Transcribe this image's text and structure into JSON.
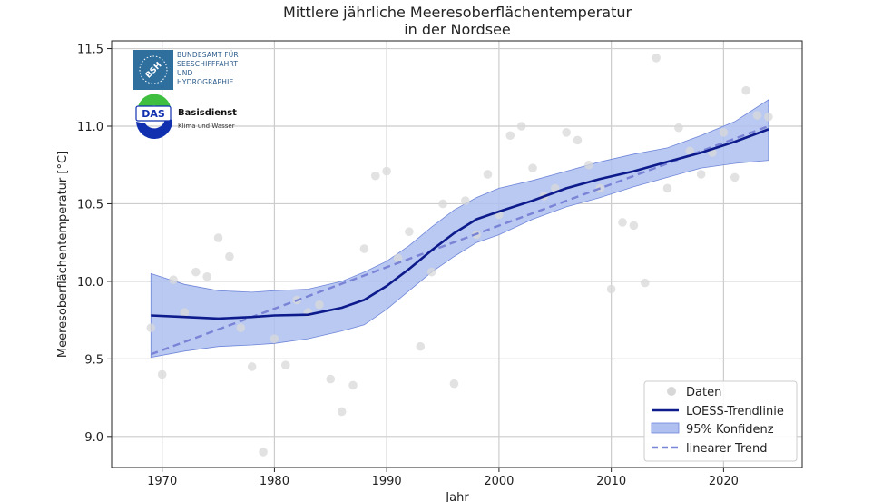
{
  "chart_data": {
    "type": "line",
    "title": [
      "Mittlere jährliche Meeresoberflächentemperatur",
      "in der Nordsee"
    ],
    "xlabel": "Jahr",
    "ylabel": "Meeresoberflächentemperatur [°C]",
    "xlim": [
      1965.5,
      2027
    ],
    "ylim": [
      8.8,
      11.55
    ],
    "xticks": [
      1970,
      1980,
      1990,
      2000,
      2010,
      2020
    ],
    "yticks": [
      9.0,
      9.5,
      10.0,
      10.5,
      11.0,
      11.5
    ],
    "ytick_labels": [
      "9.0",
      "9.5",
      "10.0",
      "10.5",
      "11.0",
      "11.5"
    ],
    "grid": true,
    "legend_position": "bottom-right",
    "legend": [
      "Daten",
      "LOESS-Trendlinie",
      "95% Konfidenz",
      "linearer Trend"
    ],
    "colors": {
      "data": "#d8d8d8",
      "loess": "#0d1b8c",
      "band_fill": "#aebff0",
      "band_edge": "#6f86d9",
      "linear": "#7a84d6"
    },
    "points": {
      "x": [
        1969,
        1970,
        1971,
        1972,
        1973,
        1974,
        1975,
        1976,
        1977,
        1978,
        1979,
        1980,
        1981,
        1982,
        1983,
        1984,
        1985,
        1986,
        1987,
        1988,
        1989,
        1990,
        1991,
        1992,
        1993,
        1994,
        1995,
        1996,
        1997,
        1998,
        1999,
        2000,
        2001,
        2002,
        2003,
        2004,
        2005,
        2006,
        2007,
        2008,
        2009,
        2010,
        2011,
        2012,
        2013,
        2014,
        2015,
        2016,
        2017,
        2018,
        2019,
        2020,
        2021,
        2022,
        2023,
        2024
      ],
      "y": [
        9.7,
        9.4,
        10.01,
        9.8,
        10.06,
        10.03,
        10.28,
        10.16,
        9.7,
        9.45,
        8.9,
        9.63,
        9.46,
        9.88,
        9.8,
        9.85,
        9.37,
        9.16,
        9.33,
        10.21,
        10.68,
        10.71,
        10.15,
        10.32,
        9.58,
        10.06,
        10.5,
        9.34,
        10.52,
        10.3,
        10.69,
        10.43,
        10.94,
        11.0,
        10.73,
        10.55,
        10.6,
        10.96,
        10.91,
        10.75,
        10.6,
        9.95,
        10.38,
        10.36,
        9.99,
        11.44,
        10.6,
        10.99,
        10.84,
        10.69,
        10.83,
        10.96,
        10.67,
        11.23,
        11.07,
        11.06
      ]
    },
    "loess": {
      "x": [
        1969,
        1972,
        1975,
        1978,
        1980,
        1983,
        1986,
        1988,
        1990,
        1992,
        1994,
        1996,
        1998,
        2000,
        2003,
        2006,
        2009,
        2012,
        2015,
        2018,
        2021,
        2024
      ],
      "y": [
        9.78,
        9.77,
        9.76,
        9.77,
        9.78,
        9.785,
        9.83,
        9.88,
        9.97,
        10.08,
        10.2,
        10.31,
        10.4,
        10.45,
        10.52,
        10.6,
        10.66,
        10.71,
        10.77,
        10.83,
        10.9,
        10.98
      ]
    },
    "ci": {
      "x": [
        1969,
        1972,
        1975,
        1978,
        1980,
        1983,
        1986,
        1988,
        1990,
        1992,
        1994,
        1996,
        1998,
        2000,
        2003,
        2006,
        2009,
        2012,
        2015,
        2018,
        2021,
        2024
      ],
      "lower": [
        9.51,
        9.55,
        9.58,
        9.59,
        9.6,
        9.63,
        9.68,
        9.72,
        9.82,
        9.94,
        10.06,
        10.16,
        10.25,
        10.3,
        10.4,
        10.48,
        10.54,
        10.61,
        10.67,
        10.73,
        10.76,
        10.78
      ],
      "upper": [
        10.05,
        9.98,
        9.94,
        9.93,
        9.94,
        9.95,
        10.0,
        10.06,
        10.13,
        10.23,
        10.35,
        10.46,
        10.54,
        10.6,
        10.65,
        10.71,
        10.77,
        10.82,
        10.86,
        10.94,
        11.03,
        11.17
      ]
    },
    "linear": {
      "x": [
        1969,
        2024
      ],
      "y": [
        9.53,
        11.0
      ]
    }
  },
  "logos": {
    "bsh_badge": "BSH",
    "bsh_text": [
      "BUNDESAMT FÜR",
      "SEESCHIFFFAHRT",
      "UND",
      "HYDROGRAPHIE"
    ],
    "das_badge": "DAS",
    "das_title": "Basisdienst",
    "das_subtitle": "Klima und Wasser"
  }
}
